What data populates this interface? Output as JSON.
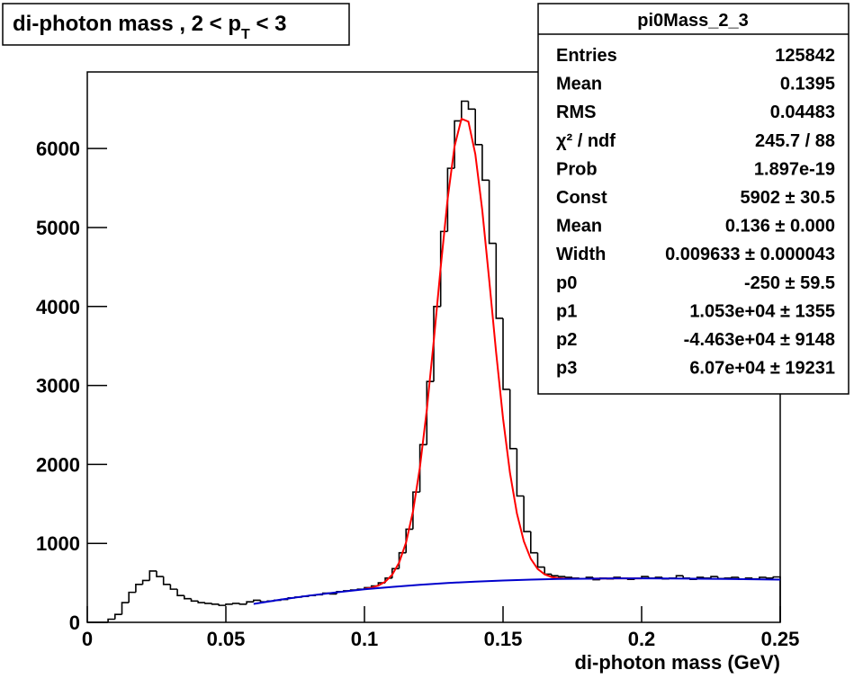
{
  "chart_data": {
    "type": "histogram",
    "title": [
      "di-photon mass , 2 < p",
      "T",
      " < 3"
    ],
    "x_label": "di-photon mass (GeV)",
    "color": "#000000",
    "bins": [
      0,
      0.0025,
      0.005,
      0.0075,
      0.01,
      0.0125,
      0.015,
      0.0175,
      0.02,
      0.0225,
      0.025,
      0.0275,
      0.03,
      0.0325,
      0.035,
      0.0375,
      0.04,
      0.0425,
      0.045,
      0.0475,
      0.05,
      0.0525,
      0.055,
      0.0575,
      0.06,
      0.0625,
      0.065,
      0.0675,
      0.07,
      0.0725,
      0.075,
      0.0775,
      0.08,
      0.0825,
      0.085,
      0.0875,
      0.09,
      0.0925,
      0.095,
      0.0975,
      0.1,
      0.1025,
      0.105,
      0.1075,
      0.11,
      0.1125,
      0.115,
      0.1175,
      0.12,
      0.1225,
      0.125,
      0.1275,
      0.13,
      0.1325,
      0.135,
      0.1375,
      0.14,
      0.1425,
      0.145,
      0.1475,
      0.15,
      0.1525,
      0.155,
      0.1575,
      0.16,
      0.1625,
      0.165,
      0.1675,
      0.17,
      0.1725,
      0.175,
      0.1775,
      0.18,
      0.1825,
      0.185,
      0.1875,
      0.19,
      0.1925,
      0.195,
      0.1975,
      0.2,
      0.2025,
      0.205,
      0.2075,
      0.21,
      0.2125,
      0.215,
      0.2175,
      0.22,
      0.2225,
      0.225,
      0.2275,
      0.23,
      0.2325,
      0.235,
      0.2375,
      0.24,
      0.2425,
      0.245,
      0.2475,
      0.25
    ],
    "counts": [
      0,
      0,
      0,
      40,
      100,
      250,
      380,
      480,
      530,
      650,
      580,
      480,
      420,
      340,
      300,
      270,
      250,
      240,
      230,
      215,
      230,
      240,
      230,
      260,
      280,
      260,
      270,
      280,
      290,
      310,
      320,
      330,
      340,
      350,
      370,
      360,
      390,
      400,
      410,
      420,
      440,
      460,
      500,
      560,
      680,
      880,
      1180,
      1650,
      2250,
      3050,
      4000,
      4950,
      5750,
      6350,
      6600,
      6500,
      6050,
      5600,
      4800,
      3850,
      2950,
      2200,
      1600,
      1150,
      880,
      700,
      610,
      590,
      580,
      570,
      560,
      550,
      570,
      540,
      560,
      550,
      570,
      560,
      545,
      560,
      580,
      560,
      570,
      550,
      560,
      590,
      560,
      545,
      570,
      560,
      580,
      555,
      560,
      570,
      545,
      560,
      550,
      570,
      560,
      575
    ],
    "curves": [
      {
        "color": "#ff0000",
        "x": [
          0.1,
          0.1025,
          0.105,
          0.1075,
          0.11,
          0.1125,
          0.115,
          0.1175,
          0.12,
          0.1225,
          0.125,
          0.1275,
          0.13,
          0.1325,
          0.135,
          0.1375,
          0.14,
          0.1425,
          0.145,
          0.1475,
          0.15,
          0.1525,
          0.155,
          0.1575,
          0.16,
          0.1625,
          0.165,
          0.1675,
          0.17,
          0.1725,
          0.175,
          0.18,
          0.19,
          0.2
        ],
        "values": [
          423,
          439,
          466,
          514,
          602,
          756,
          1010,
          1402,
          1962,
          2692,
          3562,
          4493,
          5359,
          6028,
          6377,
          6341,
          5929,
          5220,
          4339,
          3420,
          2583,
          1894,
          1380,
          1027,
          805,
          676,
          608,
          574,
          560,
          554,
          553,
          553,
          556,
          557
        ]
      },
      {
        "color": "#0000cc",
        "x": [
          0.06,
          0.07,
          0.08,
          0.09,
          0.1,
          0.11,
          0.12,
          0.13,
          0.14,
          0.15,
          0.16,
          0.17,
          0.18,
          0.19,
          0.2,
          0.21,
          0.22,
          0.23,
          0.24,
          0.25
        ],
        "values": [
          234,
          289,
          338,
          380,
          418,
          449,
          476,
          498,
          516,
          530,
          541,
          549,
          553,
          556,
          557,
          555,
          553,
          549,
          545,
          541
        ]
      }
    ],
    "xlim": [
      0,
      0.25
    ],
    "xticks": [
      0,
      0.05,
      0.1,
      0.15,
      0.2,
      0.25
    ],
    "ylim": [
      0,
      6970
    ],
    "yticks": [
      0,
      1000,
      2000,
      3000,
      4000,
      5000,
      6000
    ]
  },
  "stats_box": {
    "title": "pi0Mass_2_3",
    "rows": [
      [
        "Entries",
        "125842"
      ],
      [
        "Mean",
        "0.1395"
      ],
      [
        "RMS",
        "0.04483"
      ],
      [
        "χ² / ndf",
        "245.7 / 88"
      ],
      [
        "Prob",
        "1.897e-19"
      ],
      [
        "Const",
        "5902 ± 30.5"
      ],
      [
        "Mean",
        "0.136 ± 0.000"
      ],
      [
        "Width",
        "0.009633 ± 0.000043"
      ],
      [
        "p0",
        "-250 ± 59.5"
      ],
      [
        "p1",
        "1.053e+04 ± 1355"
      ],
      [
        "p2",
        "-4.463e+04 ± 9148"
      ],
      [
        "p3",
        "6.07e+04 ± 19231"
      ]
    ]
  }
}
